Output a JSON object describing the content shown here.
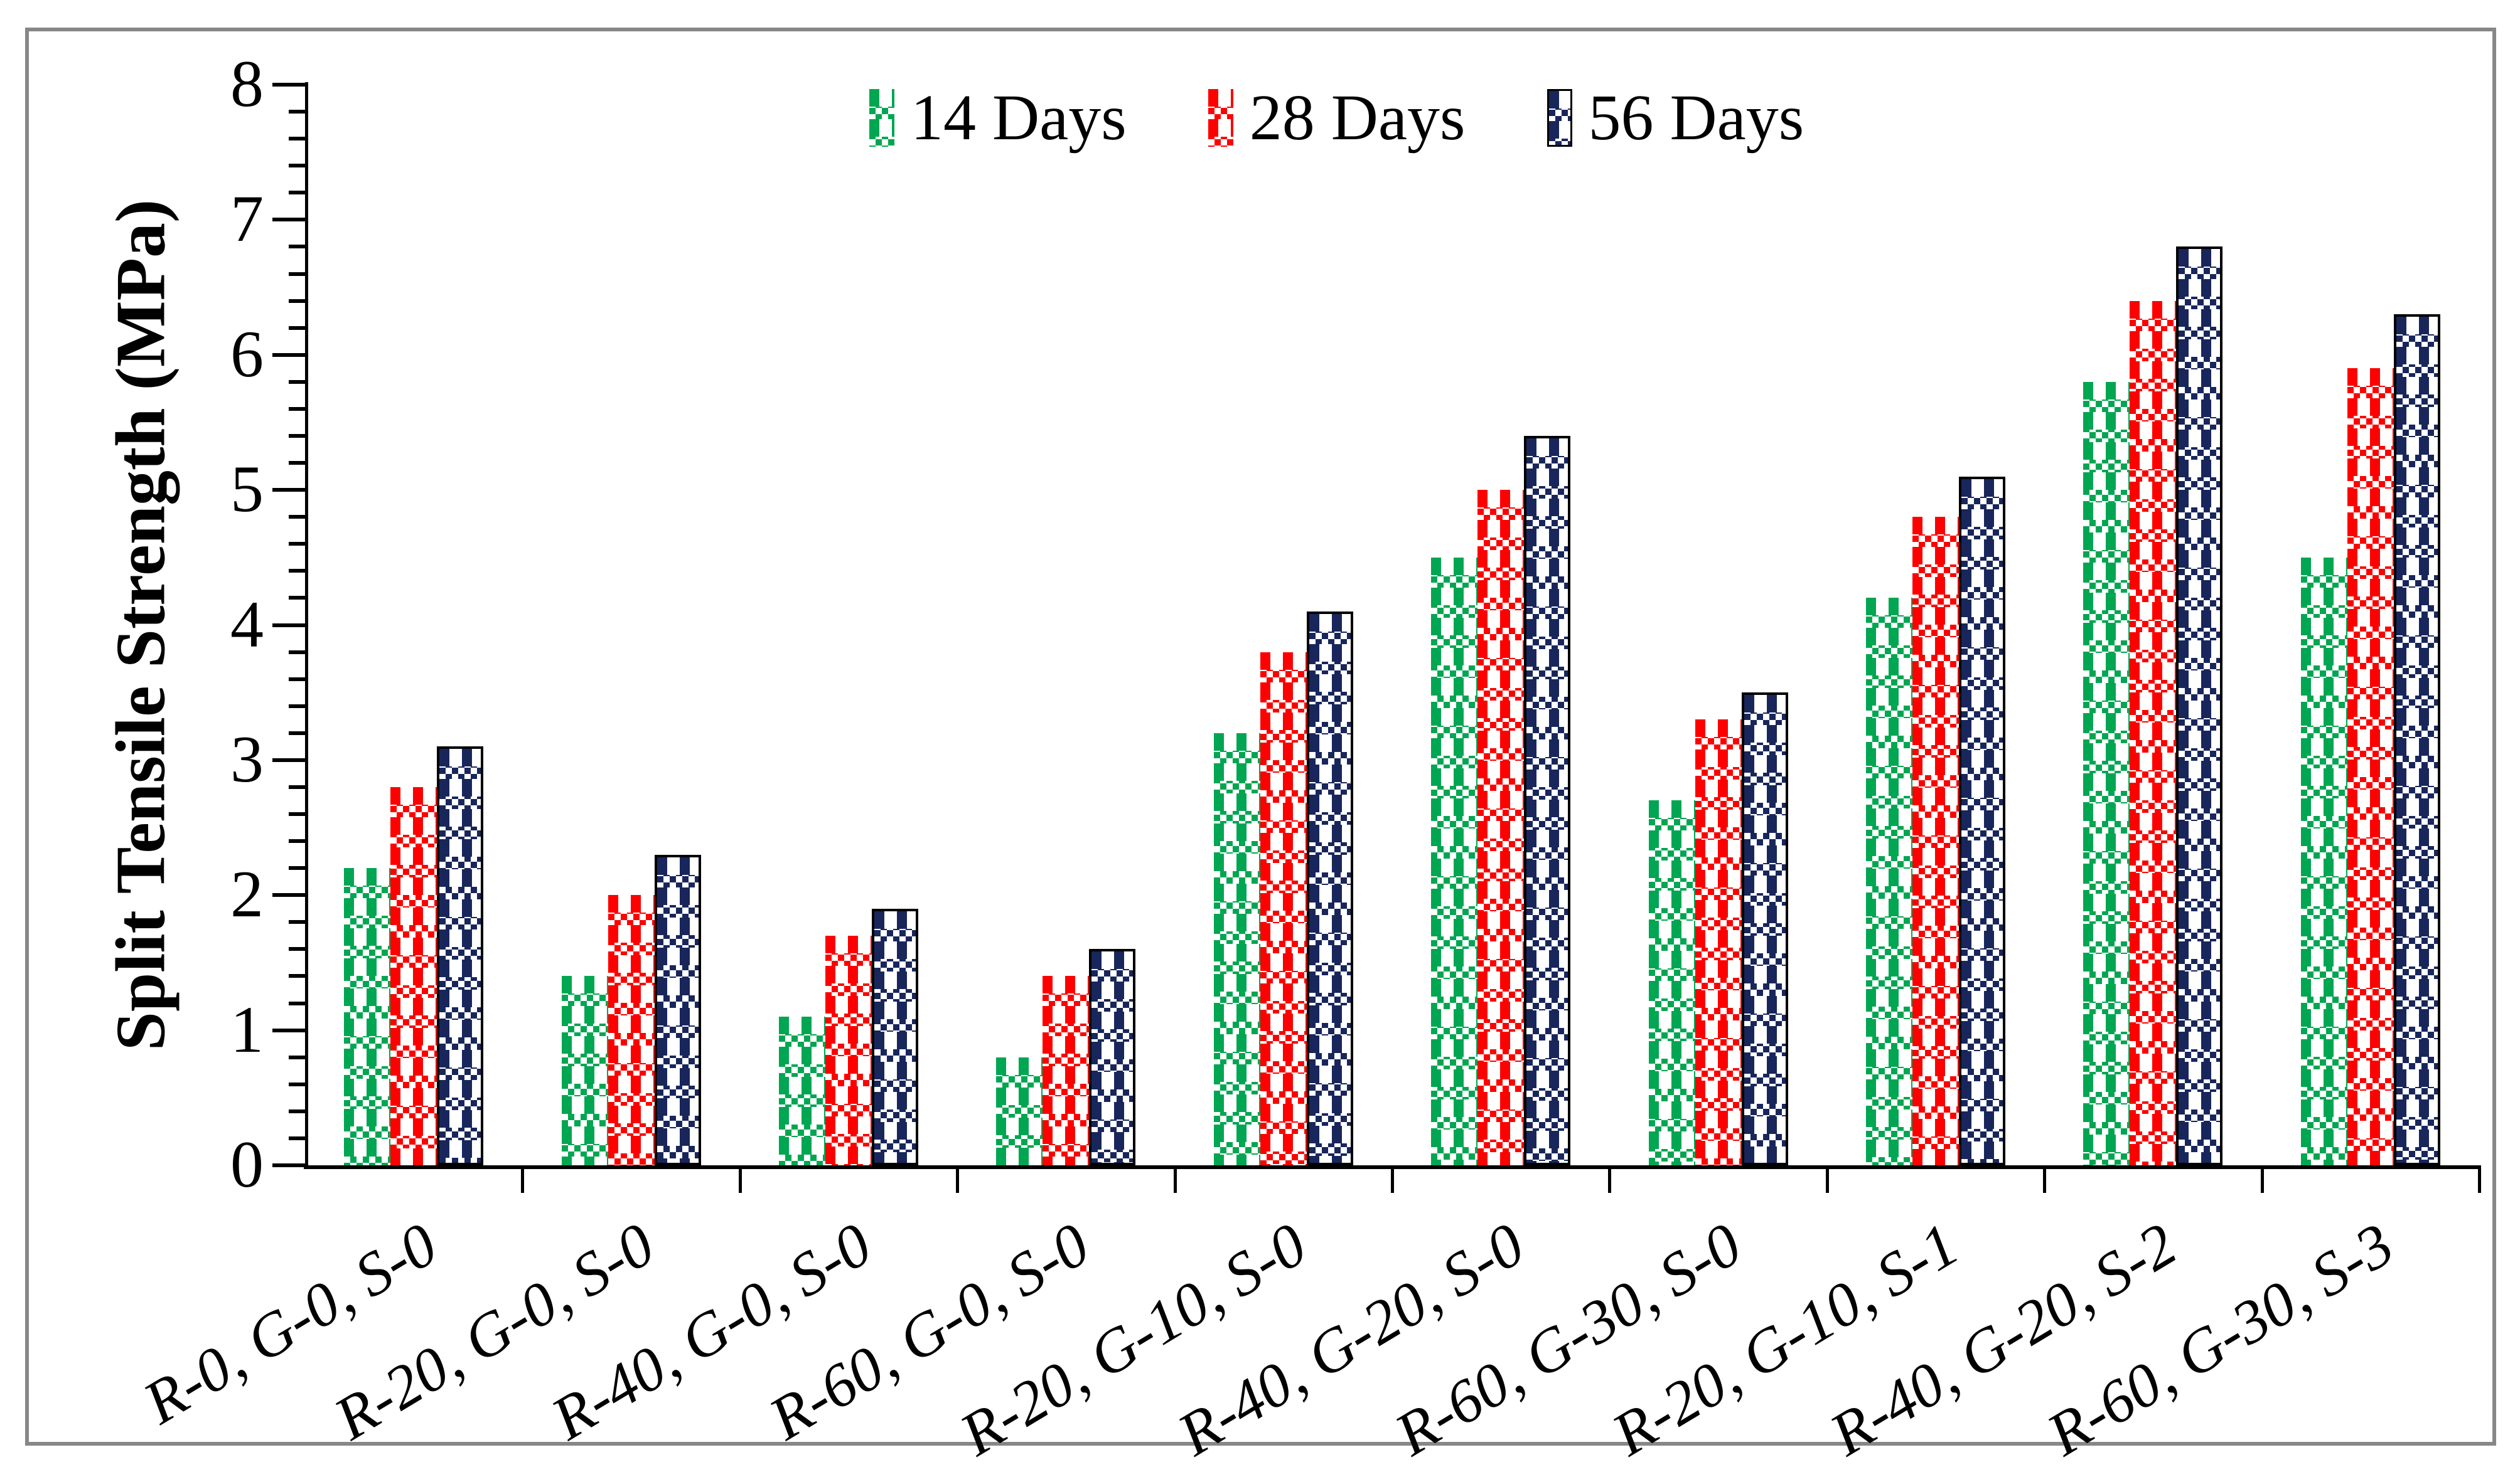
{
  "figure": {
    "background": "#ffffff",
    "border_color": "#878787"
  },
  "ylabel": "Split Tensile Strength (MPa)",
  "legend": {
    "items": [
      {
        "label": "14 Days",
        "color": "#00A651",
        "outlined": false
      },
      {
        "label": "28 Days",
        "color": "#FE0000",
        "outlined": false
      },
      {
        "label": "56 Days",
        "color": "#18265B",
        "outlined": true
      }
    ]
  },
  "chart_data": {
    "type": "bar",
    "title": "",
    "xlabel": "",
    "ylabel": "Split Tensile Strength (MPa)",
    "ylim": [
      0,
      8
    ],
    "y_major_step": 1,
    "y_minor_step": 0.2,
    "y_ticks": [
      0,
      1,
      2,
      3,
      4,
      5,
      6,
      7,
      8
    ],
    "grid": false,
    "legend_position": "top",
    "bar_pattern": "plaid-checker",
    "categories": [
      "R-0, G-0, S-0",
      "R-20, G-0, S-0",
      "R-40, G-0, S-0",
      "R-60, G-0, S-0",
      "R-20, G-10, S-0",
      "R-40, G-20, S-0",
      "R-60, G-30, S-0",
      "R-20, G-10, S-1",
      "R-40, G-20, S-2",
      "R-60, G-30, S-3"
    ],
    "series": [
      {
        "name": "14 Days",
        "color": "#00A651",
        "outlined": false,
        "values": [
          2.2,
          1.4,
          1.1,
          0.8,
          3.2,
          4.5,
          2.7,
          4.2,
          5.8,
          4.5
        ]
      },
      {
        "name": "28 Days",
        "color": "#FE0000",
        "outlined": false,
        "values": [
          2.8,
          2.0,
          1.7,
          1.4,
          3.8,
          5.0,
          3.3,
          4.8,
          6.4,
          5.9
        ]
      },
      {
        "name": "56 Days",
        "color": "#18265B",
        "outlined": true,
        "values": [
          3.1,
          2.3,
          1.9,
          1.6,
          4.1,
          5.4,
          3.5,
          5.1,
          6.8,
          6.3
        ]
      }
    ]
  }
}
